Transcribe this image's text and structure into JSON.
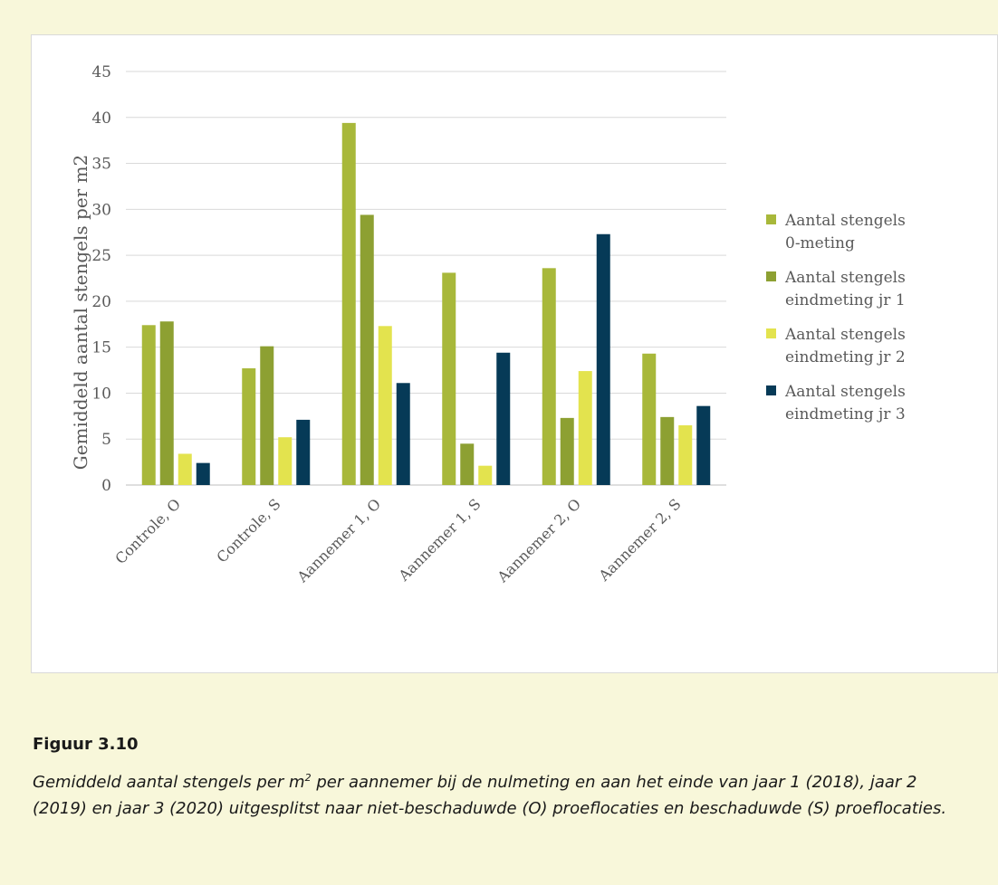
{
  "chart_data": {
    "type": "bar",
    "title": "",
    "xlabel": "",
    "ylabel": "Gemiddeld aantal stengels per m2",
    "ylim": [
      0,
      45
    ],
    "yticks": [
      0,
      5,
      10,
      15,
      20,
      25,
      30,
      35,
      40,
      45
    ],
    "grid": true,
    "legend_position": "right",
    "categories": [
      "Controle, O",
      "Controle, S",
      "Aannemer 1, O",
      "Aannemer 1, S",
      "Aannemer 2, O",
      "Aannemer 2, S"
    ],
    "series": [
      {
        "name": "Aantal stengels 0-meting",
        "name_lines": [
          "Aantal stengels",
          "0-meting"
        ],
        "color": "#a8b83a",
        "values": [
          17.4,
          12.7,
          39.4,
          23.1,
          23.6,
          14.3
        ]
      },
      {
        "name": "Aantal stengels eindmeting jr 1",
        "name_lines": [
          "Aantal stengels",
          "eindmeting jr 1"
        ],
        "color": "#8da032",
        "values": [
          17.8,
          15.1,
          29.4,
          4.5,
          7.3,
          7.4
        ]
      },
      {
        "name": "Aantal stengels eindmeting jr 2",
        "name_lines": [
          "Aantal stengels",
          "eindmeting jr 2"
        ],
        "color": "#e3e34e",
        "values": [
          3.4,
          5.2,
          17.3,
          2.1,
          12.4,
          6.5
        ]
      },
      {
        "name": "Aantal stengels eindmeting jr 3",
        "name_lines": [
          "Aantal stengels",
          "eindmeting jr 3"
        ],
        "color": "#063a57",
        "values": [
          2.4,
          7.1,
          11.1,
          14.4,
          27.3,
          8.6
        ]
      }
    ]
  },
  "caption": {
    "label": "Figuur 3.10",
    "text_before_sup": "Gemiddeld aantal stengels per m",
    "sup": "2",
    "text_after_sup": " per aannemer bij de nulmeting en aan het einde van jaar 1 (2018), jaar 2 (2019) en jaar 3 (2020) uitgesplitst naar niet-beschaduwde (O) proeflocaties en beschaduwde (S) proeflocaties."
  }
}
